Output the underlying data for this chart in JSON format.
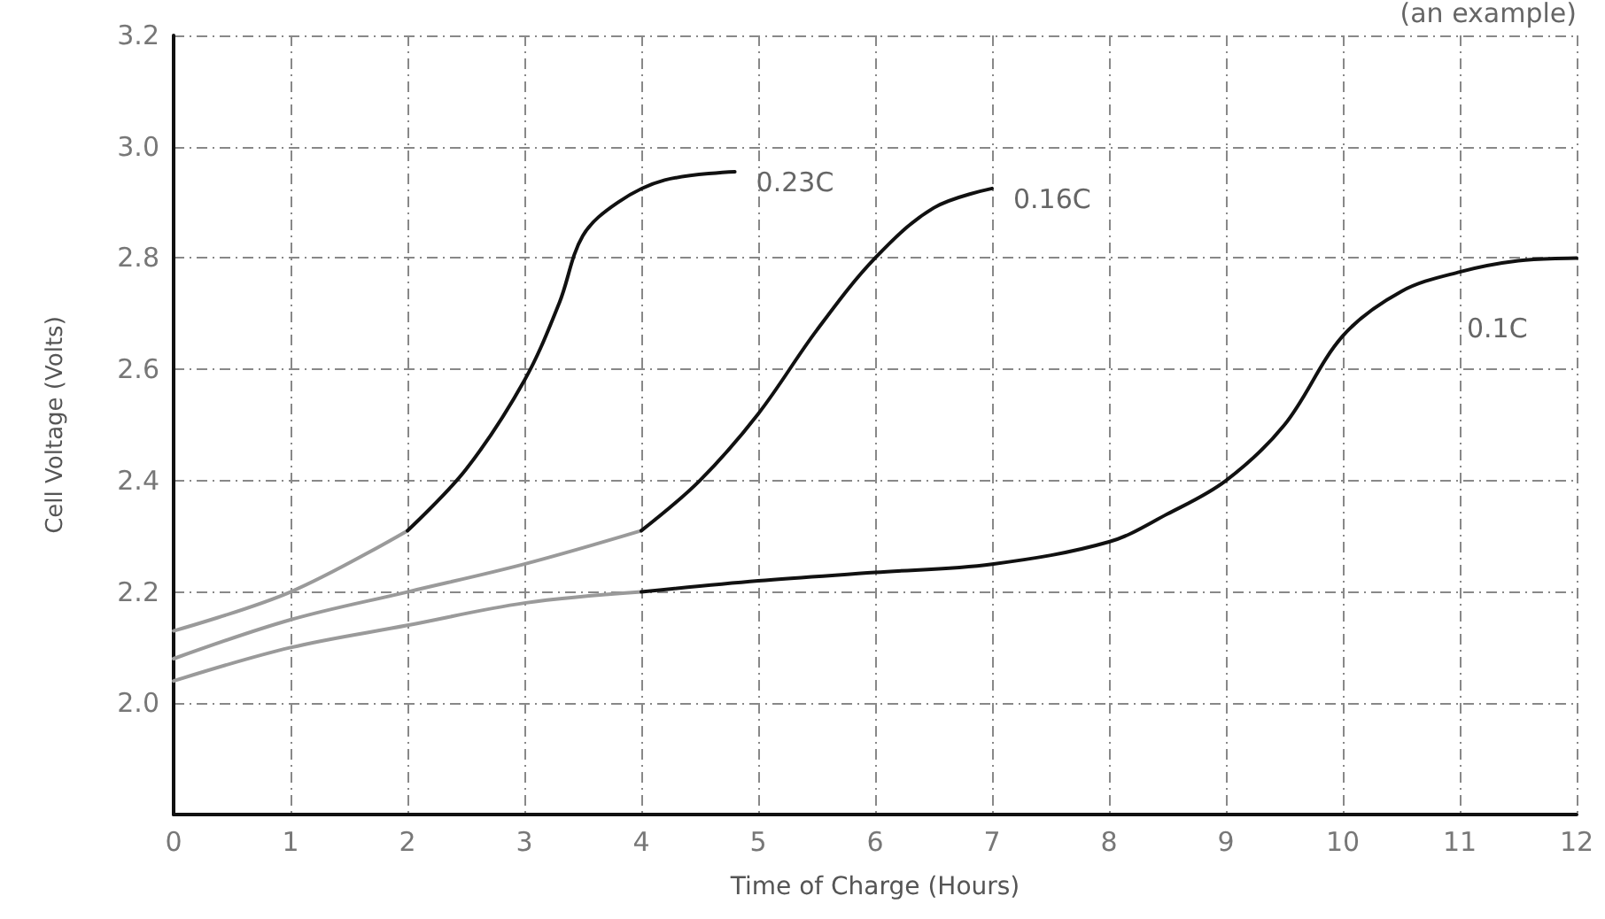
{
  "chart_data": {
    "type": "line",
    "xlabel": "Time of Charge (Hours)",
    "ylabel": "Cell Voltage (Volts)",
    "xlim": [
      0,
      12
    ],
    "xticks": [
      0,
      1,
      2,
      3,
      4,
      5,
      6,
      7,
      8,
      9,
      10,
      11,
      12
    ],
    "ylim": [
      1.8,
      3.2
    ],
    "yticks": [
      {
        "value": 2.0,
        "label": "2.0"
      },
      {
        "value": 2.2,
        "label": "2.2"
      },
      {
        "value": 2.4,
        "label": "2.4"
      },
      {
        "value": 2.6,
        "label": "2.6"
      },
      {
        "value": 2.8,
        "label": "2.8"
      },
      {
        "value": 3.0,
        "label": "3.0"
      },
      {
        "value": 3.2,
        "label": "3.2"
      }
    ],
    "grid": true,
    "marker": "none",
    "line_style": "solid",
    "series": [
      {
        "color": "#9a9a9a",
        "x": [
          0,
          1,
          2
        ],
        "values": [
          2.13,
          2.2,
          2.31
        ]
      },
      {
        "name": "0.23C",
        "color": "#111111",
        "x": [
          2,
          2.5,
          3,
          3.3,
          3.5,
          3.8,
          4.2,
          4.8
        ],
        "values": [
          2.31,
          2.42,
          2.58,
          2.72,
          2.84,
          2.9,
          2.94,
          2.955
        ]
      },
      {
        "color": "#9a9a9a",
        "x": [
          0,
          1,
          2,
          3,
          4
        ],
        "values": [
          2.08,
          2.15,
          2.2,
          2.25,
          2.31
        ]
      },
      {
        "name": "0.16C",
        "color": "#111111",
        "x": [
          4,
          4.5,
          5,
          5.5,
          6,
          6.5,
          7
        ],
        "values": [
          2.31,
          2.4,
          2.52,
          2.67,
          2.8,
          2.89,
          2.925
        ]
      },
      {
        "color": "#9a9a9a",
        "x": [
          0,
          1,
          2,
          3,
          4
        ],
        "values": [
          2.04,
          2.1,
          2.14,
          2.18,
          2.2
        ]
      },
      {
        "name": "0.1C",
        "color": "#111111",
        "x": [
          4,
          5,
          6,
          7,
          8,
          8.5,
          9,
          9.5,
          10,
          10.5,
          11,
          11.5,
          12
        ],
        "values": [
          2.2,
          2.22,
          2.235,
          2.25,
          2.29,
          2.34,
          2.4,
          2.5,
          2.66,
          2.74,
          2.775,
          2.795,
          2.8
        ]
      }
    ],
    "annotations": [
      "(an example)"
    ]
  }
}
